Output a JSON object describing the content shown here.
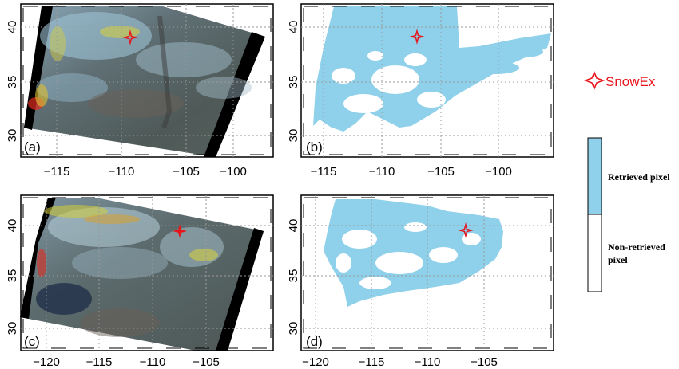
{
  "panels": [
    {
      "id": "a",
      "label": "(a)",
      "kind": "rgb",
      "x_ticks": [
        "−115",
        "−110",
        "−105",
        "−100"
      ],
      "y_ticks": [
        "40",
        "35",
        "30"
      ]
    },
    {
      "id": "b",
      "label": "(b)",
      "kind": "mask",
      "x_ticks": [
        "−115",
        "−110",
        "−105",
        "−100"
      ],
      "y_ticks": [
        "40",
        "35",
        "30"
      ]
    },
    {
      "id": "c",
      "label": "(c)",
      "kind": "rgb",
      "x_ticks": [
        "−120",
        "−115",
        "−110",
        "−105"
      ],
      "y_ticks": [
        "40",
        "35",
        "30"
      ]
    },
    {
      "id": "d",
      "label": "(d)",
      "kind": "mask",
      "x_ticks": [
        "−120",
        "−115",
        "−110",
        "−105"
      ],
      "y_ticks": [
        "40",
        "35",
        "30"
      ]
    }
  ],
  "legend": {
    "marker_label": "SnowEx",
    "marker_icon": "four-point-star-icon",
    "colorbar": [
      {
        "label": "Retrieved pixel",
        "color": "#8fd0ea"
      },
      {
        "label_lines": [
          "Non-retrieved",
          "pixel"
        ],
        "color": "#ffffff"
      }
    ]
  },
  "colors": {
    "mask_blue": "#8fd0ea",
    "marker_red": "#e8141b",
    "grid": "#9a9a9a"
  }
}
